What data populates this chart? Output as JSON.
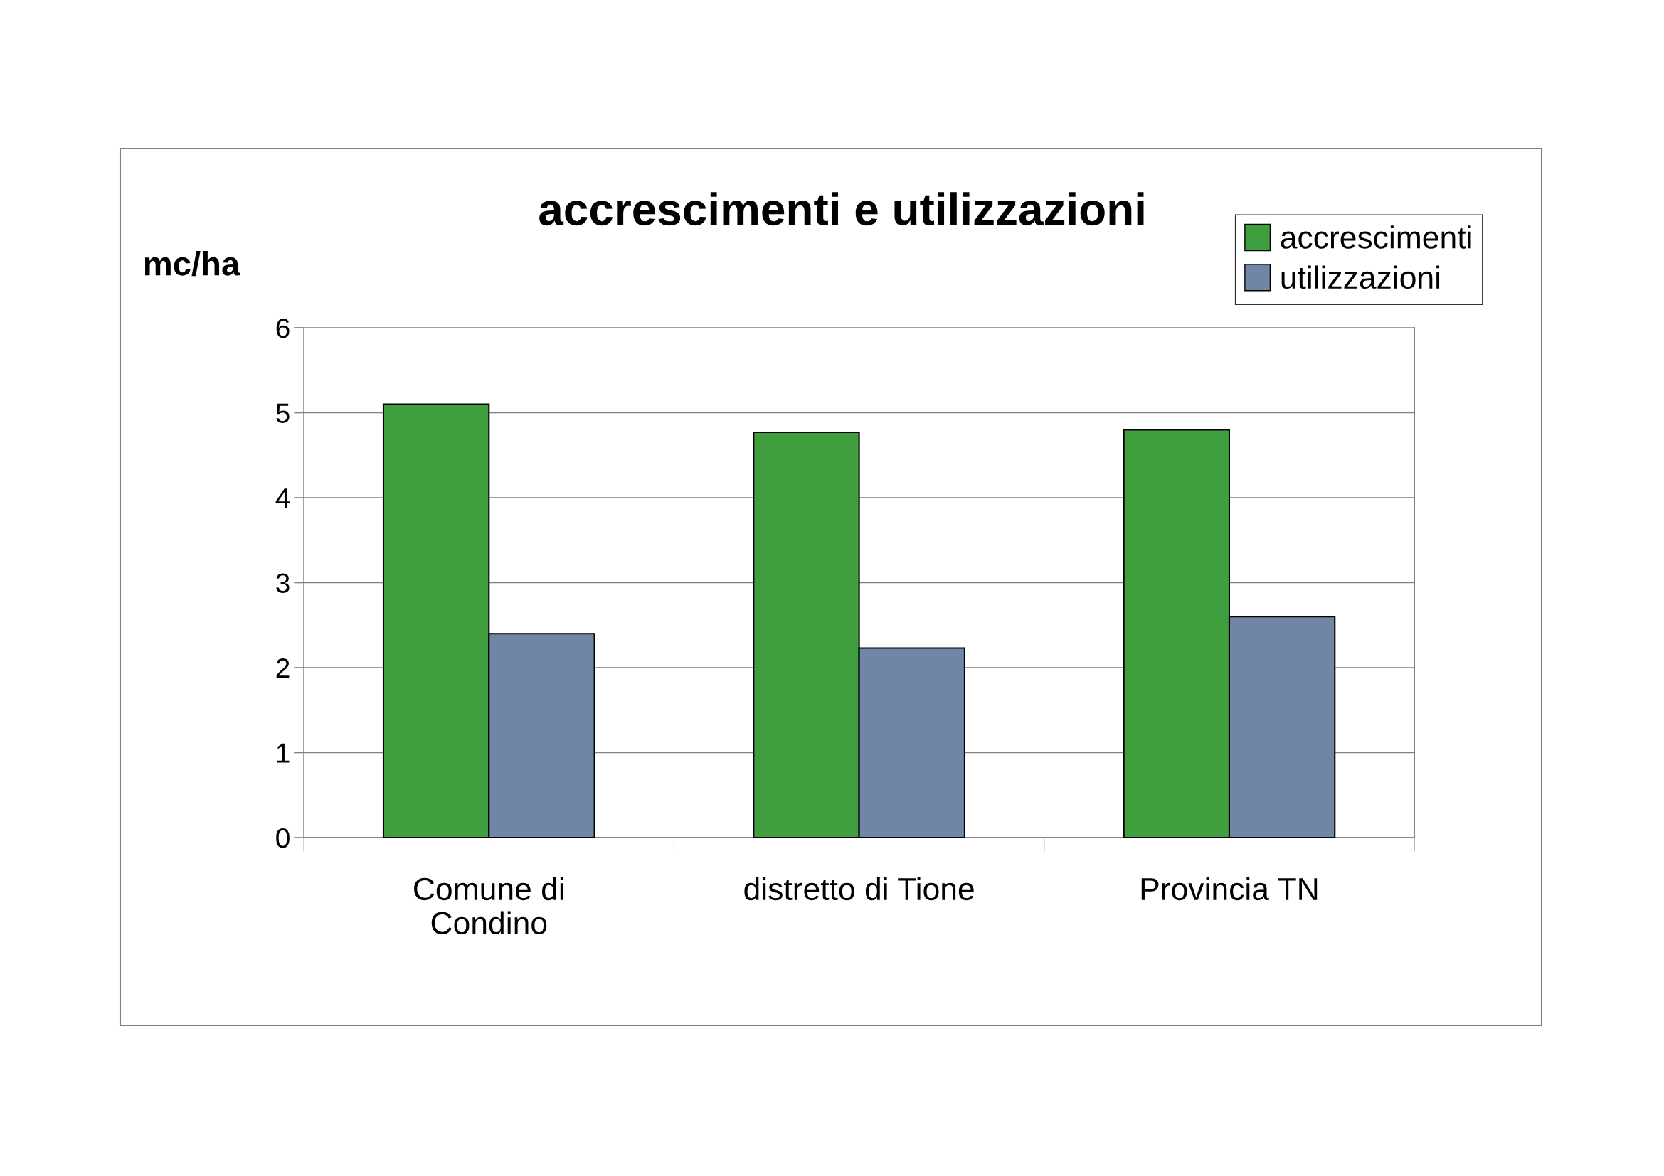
{
  "chart_data": {
    "type": "bar",
    "title": "accrescimenti e utilizzazioni",
    "ylabel": "mc/ha",
    "categories": [
      "Comune di\nCondino",
      "distretto di Tione",
      "Provincia TN"
    ],
    "series": [
      {
        "name": "accrescimenti",
        "color": "#3f9f3f",
        "values": [
          5.1,
          4.77,
          4.8
        ]
      },
      {
        "name": "utilizzazioni",
        "color": "#6f86a6",
        "values": [
          2.4,
          2.23,
          2.6
        ]
      }
    ],
    "ylim": [
      0,
      6
    ],
    "yticks": [
      0,
      1,
      2,
      3,
      4,
      5,
      6
    ],
    "grid": "y",
    "legend": "top right"
  }
}
